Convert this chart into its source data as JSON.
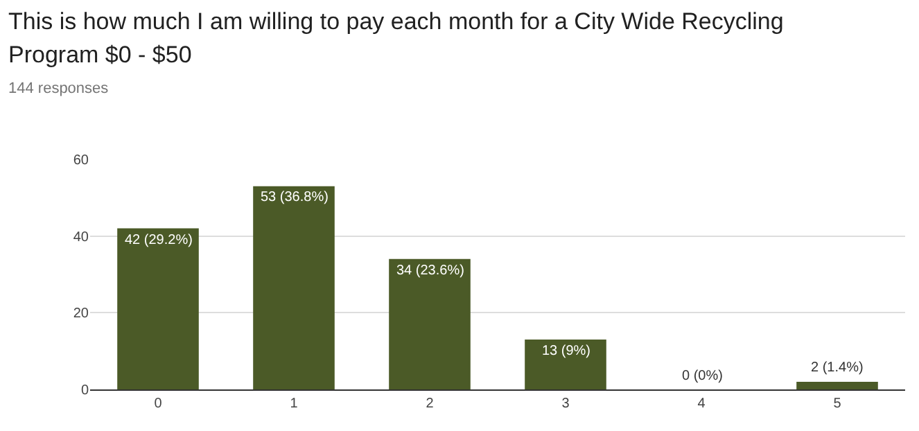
{
  "chart_data": {
    "type": "bar",
    "title": "This is how much I am willing to pay each month for a City Wide Recycling Program $0 - $50",
    "subtitle": "144 responses",
    "categories": [
      "0",
      "1",
      "2",
      "3",
      "4",
      "5"
    ],
    "values": [
      42,
      53,
      34,
      13,
      0,
      2
    ],
    "value_labels": [
      "42 (29.2%)",
      "53 (36.8%)",
      "34 (23.6%)",
      "13 (9%)",
      "0 (0%)",
      "2 (1.4%)"
    ],
    "color": "#4b5a27",
    "ylim": [
      0,
      60
    ],
    "yticks": [
      0,
      20,
      40,
      60
    ],
    "grid": "y",
    "legend": false
  }
}
